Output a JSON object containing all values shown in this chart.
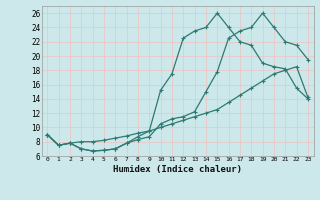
{
  "xlabel": "Humidex (Indice chaleur)",
  "ylabel": "",
  "background_color": "#cce8ea",
  "grid_color": "#e8c8c8",
  "line_color": "#2d7a72",
  "xlim": [
    -0.5,
    23.5
  ],
  "ylim": [
    6,
    27
  ],
  "xticks": [
    0,
    1,
    2,
    3,
    4,
    5,
    6,
    7,
    8,
    9,
    10,
    11,
    12,
    13,
    14,
    15,
    16,
    17,
    18,
    19,
    20,
    21,
    22,
    23
  ],
  "yticks": [
    6,
    8,
    10,
    12,
    14,
    16,
    18,
    20,
    22,
    24,
    26
  ],
  "line_zigzag_x": [
    0,
    1,
    2,
    3,
    4,
    5,
    6,
    7,
    8,
    9,
    10,
    11,
    12,
    13,
    14,
    15,
    16,
    17,
    18,
    19,
    20,
    21,
    22,
    23
  ],
  "line_zigzag_y": [
    9.0,
    7.5,
    7.8,
    7.0,
    6.7,
    6.8,
    7.0,
    7.8,
    8.3,
    8.7,
    10.5,
    11.2,
    11.5,
    12.2,
    15.0,
    17.8,
    22.5,
    23.5,
    24.0,
    26.0,
    24.0,
    22.0,
    21.5,
    19.5
  ],
  "line_max_x": [
    0,
    1,
    2,
    3,
    4,
    5,
    6,
    7,
    8,
    9,
    10,
    11,
    12,
    13,
    14,
    15,
    16,
    17,
    18,
    19,
    20,
    21,
    22,
    23
  ],
  "line_max_y": [
    9.0,
    7.5,
    7.8,
    7.0,
    6.7,
    6.8,
    7.0,
    7.8,
    8.7,
    9.5,
    15.2,
    17.5,
    22.5,
    23.5,
    24.0,
    26.0,
    24.0,
    22.0,
    21.5,
    19.0,
    18.5,
    18.2,
    15.5,
    14.0
  ],
  "line_min_x": [
    0,
    1,
    2,
    3,
    4,
    5,
    6,
    7,
    8,
    9,
    10,
    11,
    12,
    13,
    14,
    15,
    16,
    17,
    18,
    19,
    20,
    21,
    22,
    23
  ],
  "line_min_y": [
    9.0,
    7.5,
    7.8,
    8.0,
    8.0,
    8.2,
    8.5,
    8.8,
    9.2,
    9.5,
    10.0,
    10.5,
    11.0,
    11.5,
    12.0,
    12.5,
    13.5,
    14.5,
    15.5,
    16.5,
    17.5,
    18.0,
    18.5,
    14.2
  ]
}
